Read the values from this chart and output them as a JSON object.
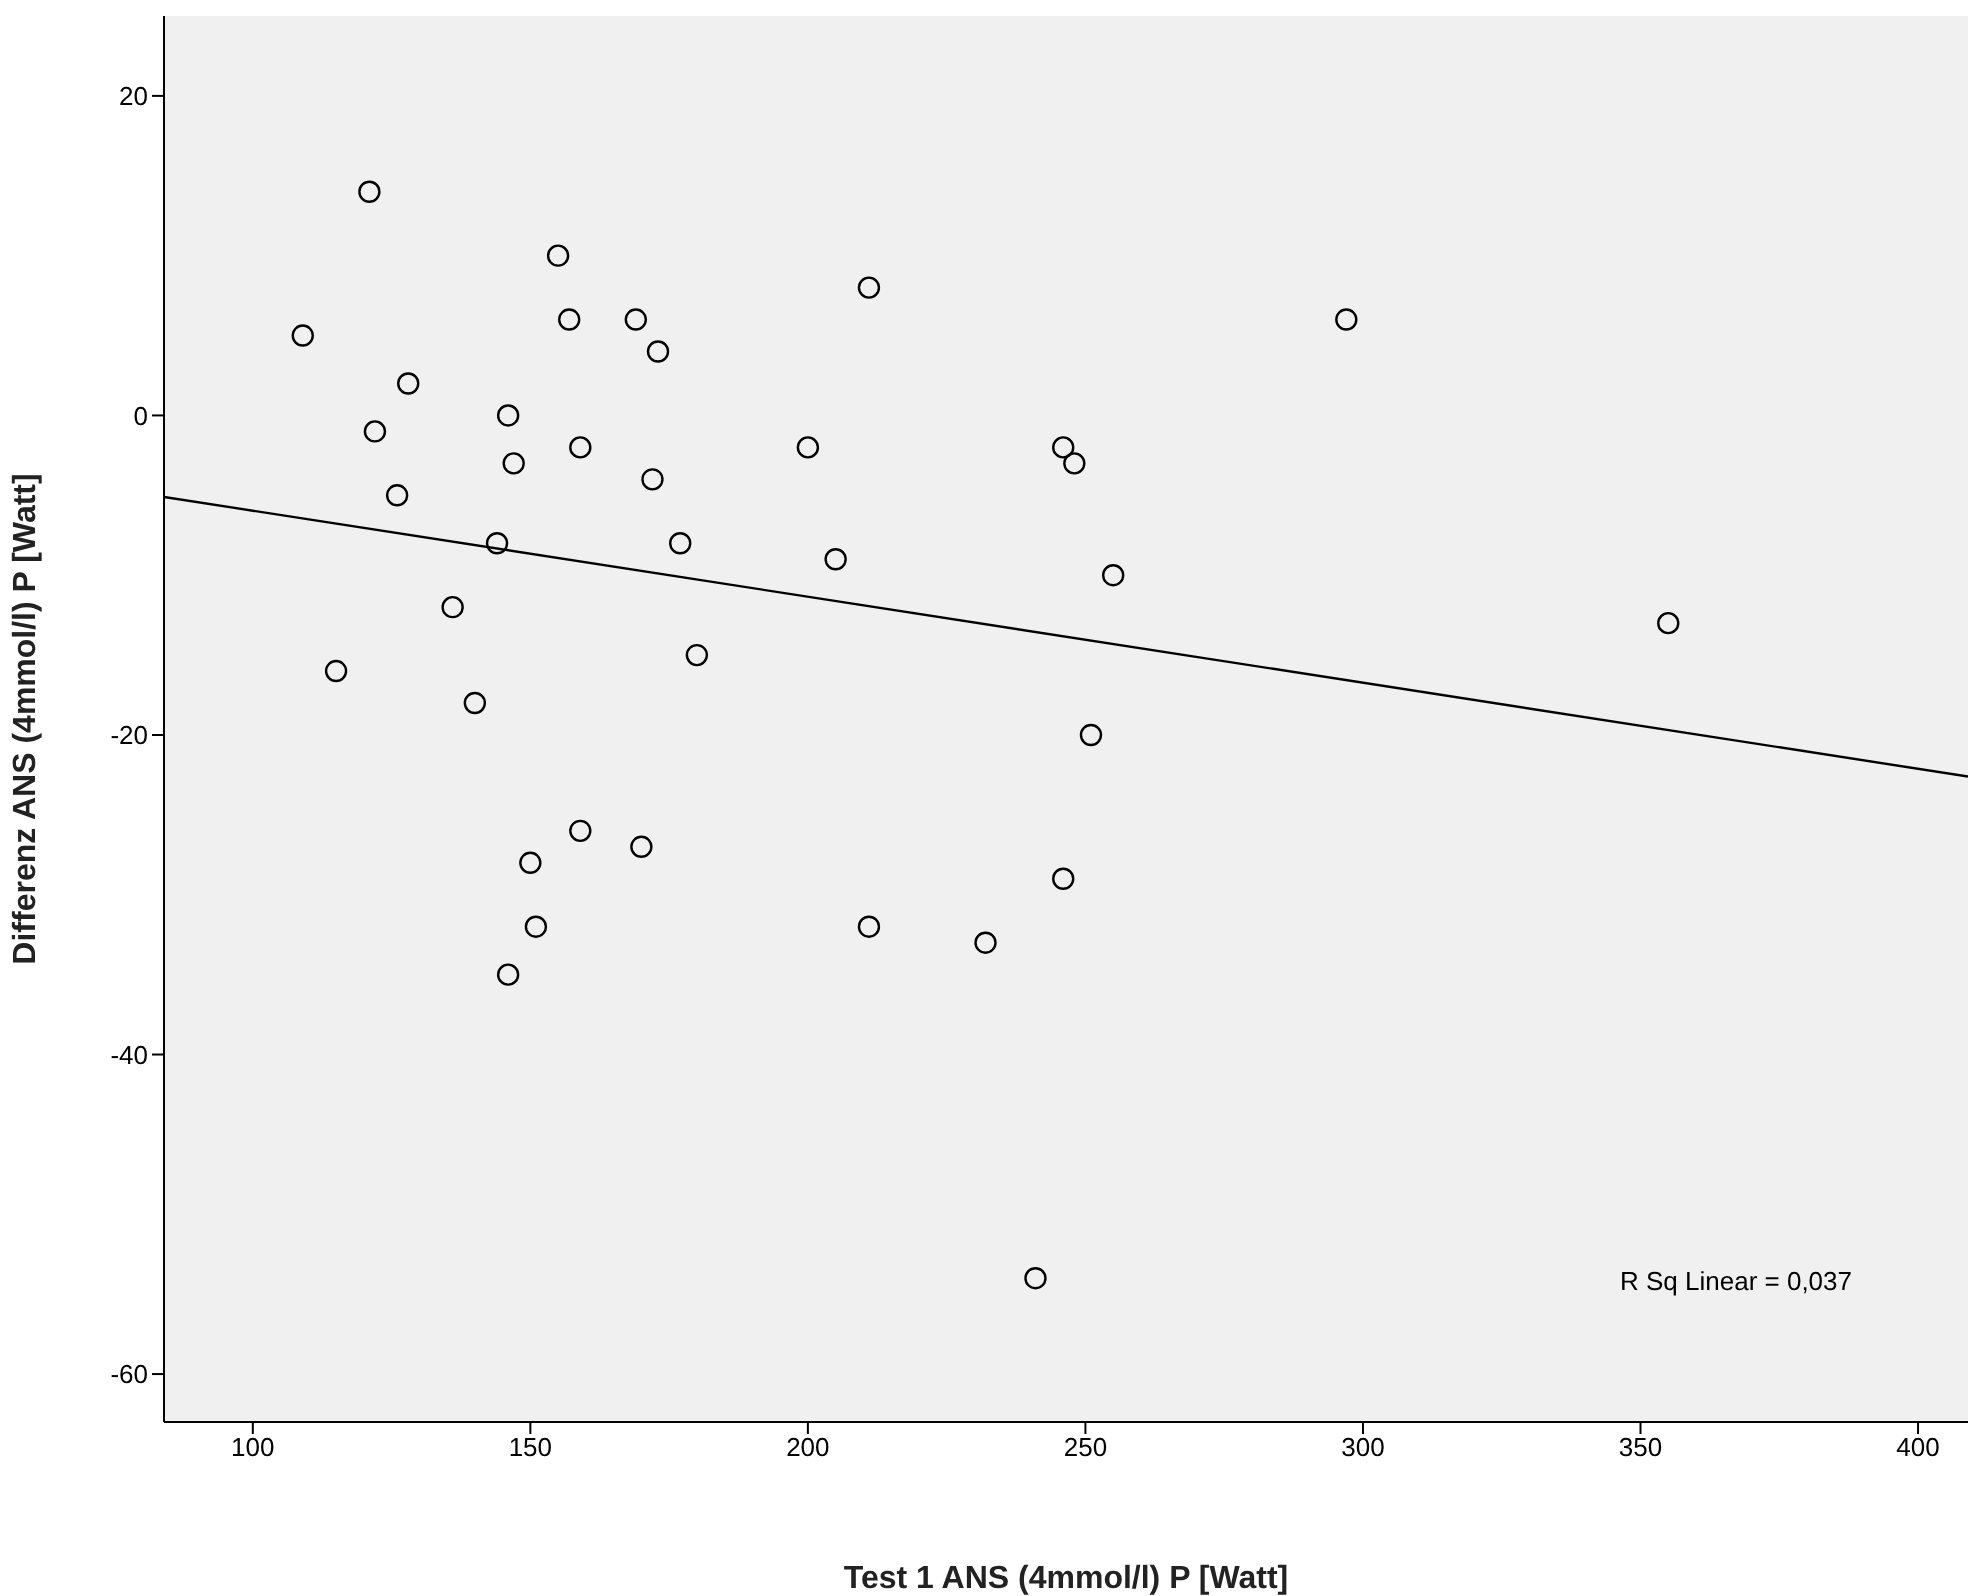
{
  "chart_data": {
    "type": "scatter",
    "xlabel": "Test 1 ANS (4mmol/l) P [Watt]",
    "ylabel": "Differenz ANS (4mmol/l) P [Watt]",
    "xlim": [
      84,
      409
    ],
    "ylim": [
      -63,
      25
    ],
    "xticks": [
      100,
      150,
      200,
      250,
      300,
      350,
      400
    ],
    "yticks": [
      -60,
      -40,
      -20,
      0,
      20
    ],
    "annotations": [
      "R Sq Linear = 0,037"
    ],
    "series": [
      {
        "marker": "circle",
        "color": "#000000",
        "x": [
          109,
          121,
          128,
          122,
          126,
          115,
          136,
          140,
          144,
          146,
          147,
          155,
          157,
          159,
          169,
          173,
          172,
          177,
          180,
          150,
          159,
          151,
          146,
          170,
          200,
          211,
          205,
          211,
          232,
          246,
          248,
          255,
          251,
          246,
          241,
          297,
          355
        ],
        "values": [
          5,
          14,
          2,
          -1,
          -5,
          -16,
          -12,
          -18,
          -8,
          0,
          -3,
          10,
          6,
          -2,
          6,
          4,
          -4,
          -8,
          -15,
          -28,
          -26,
          -32,
          -35,
          -27,
          -2,
          8,
          -9,
          -32,
          -33,
          -2,
          -3,
          -10,
          -20,
          -29,
          -54,
          6,
          -13
        ]
      },
      {
        "type": "line",
        "marker": "none",
        "color": "#000000",
        "x": [
          84,
          409
        ],
        "values": [
          -5.1,
          -22.6
        ]
      }
    ]
  }
}
